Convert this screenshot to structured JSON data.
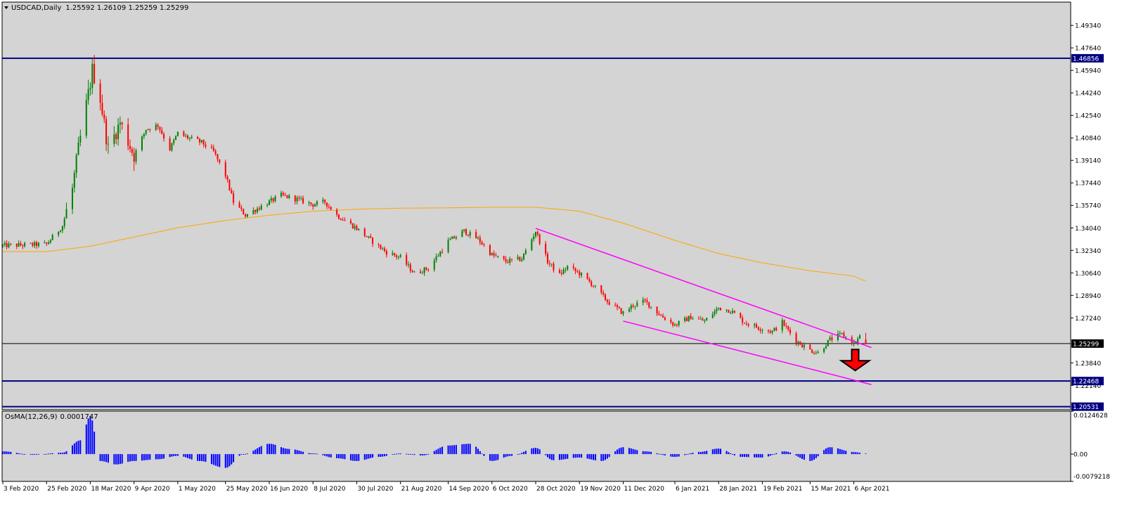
{
  "header": {
    "dropdown_icon": "triangle-down-icon",
    "title": "USDCAD,Daily",
    "ohlc": "1.25592 1.26109 1.25259 1.25299"
  },
  "colors": {
    "background": "#ffffff",
    "plot_background": "#d4d4d4",
    "bull": "#008000",
    "bear": "#ff0000",
    "ma_line": "#ffa500",
    "channel": "#ff00ff",
    "level_line": "#000080",
    "osma_bars": "#0000ff",
    "arrow": "#ff0000"
  },
  "chart_data": [
    {
      "type": "candlestick",
      "symbol": "USDCAD",
      "timeframe": "Daily",
      "ohlc_last": {
        "open": 1.25592,
        "high": 1.26109,
        "low": 1.25259,
        "close": 1.25299
      },
      "ylim": [
        1.203,
        1.511
      ],
      "y_ticks": [
        "1.49340",
        "1.47640",
        "1.45940",
        "1.44240",
        "1.42540",
        "1.40840",
        "1.39140",
        "1.37440",
        "1.35740",
        "1.34040",
        "1.32340",
        "1.30640",
        "1.28940",
        "1.27240",
        "1.23840",
        "1.22140"
      ],
      "x_ticks": [
        "3 Feb 2020",
        "25 Feb 2020",
        "18 Mar 2020",
        "9 Apr 2020",
        "1 May 2020",
        "25 May 2020",
        "16 Jun 2020",
        "8 Jul 2020",
        "30 Jul 2020",
        "21 Aug 2020",
        "14 Sep 2020",
        "6 Oct 2020",
        "28 Oct 2020",
        "19 Nov 2020",
        "11 Dec 2020",
        "6 Jan 2021",
        "28 Jan 2021",
        "19 Feb 2021",
        "15 Mar 2021",
        "6 Apr 2021"
      ],
      "price_levels": [
        {
          "label": "1.46856",
          "value": 1.46856
        },
        {
          "label": "1.25299",
          "value": 1.25299
        },
        {
          "label": "1.22468",
          "value": 1.22468
        },
        {
          "label": "1.20531",
          "value": 1.20531
        }
      ],
      "moving_average": {
        "x": [
          "3 Feb 2020",
          "25 Feb 2020",
          "18 Mar 2020",
          "9 Apr 2020",
          "1 May 2020",
          "25 May 2020",
          "16 Jun 2020",
          "8 Jul 2020",
          "30 Jul 2020",
          "21 Aug 2020",
          "14 Sep 2020",
          "6 Oct 2020",
          "28 Oct 2020",
          "19 Nov 2020",
          "11 Dec 2020",
          "6 Jan 2021",
          "28 Jan 2021",
          "19 Feb 2021",
          "15 Mar 2021",
          "6 Apr 2021",
          "12 Apr 2021"
        ],
        "y": [
          1.3225,
          1.3225,
          1.3265,
          1.3335,
          1.3405,
          1.346,
          1.35,
          1.353,
          1.3545,
          1.3553,
          1.3555,
          1.356,
          1.356,
          1.353,
          1.344,
          1.331,
          1.321,
          1.314,
          1.308,
          1.304,
          1.3
        ]
      },
      "channel": {
        "upper": [
          {
            "x": "28 Oct 2020",
            "y": 1.34
          },
          {
            "x": "12 Apr 2021",
            "y": 1.25
          }
        ],
        "lower": [
          {
            "x": "11 Dec 2020",
            "y": 1.27
          },
          {
            "x": "12 Apr 2021",
            "y": 1.222
          }
        ]
      },
      "annotation": {
        "type": "arrow-down",
        "x": "12 Apr 2021",
        "y": 1.24
      },
      "series": [
        {
          "x": "3 Feb 2020",
          "y": 1.327
        },
        {
          "x": "25 Feb 2020",
          "y": 1.328
        },
        {
          "x": "4 Mar 2020",
          "y": 1.342
        },
        {
          "x": "9 Mar 2020",
          "y": 1.37
        },
        {
          "x": "12 Mar 2020",
          "y": 1.4
        },
        {
          "x": "18 Mar 2020",
          "y": 1.45
        },
        {
          "x": "19 Mar 2020",
          "y": 1.46
        },
        {
          "x": "23 Mar 2020",
          "y": 1.438
        },
        {
          "x": "27 Mar 2020",
          "y": 1.4
        },
        {
          "x": "2 Apr 2020",
          "y": 1.42
        },
        {
          "x": "9 Apr 2020",
          "y": 1.395
        },
        {
          "x": "15 Apr 2020",
          "y": 1.415
        },
        {
          "x": "21 Apr 2020",
          "y": 1.418
        },
        {
          "x": "27 Apr 2020",
          "y": 1.4
        },
        {
          "x": "1 May 2020",
          "y": 1.412
        },
        {
          "x": "7 May 2020",
          "y": 1.408
        },
        {
          "x": "13 May 2020",
          "y": 1.405
        },
        {
          "x": "19 May 2020",
          "y": 1.398
        },
        {
          "x": "25 May 2020",
          "y": 1.38
        },
        {
          "x": "29 May 2020",
          "y": 1.36
        },
        {
          "x": "4 Jun 2020",
          "y": 1.35
        },
        {
          "x": "10 Jun 2020",
          "y": 1.355
        },
        {
          "x": "16 Jun 2020",
          "y": 1.36
        },
        {
          "x": "22 Jun 2020",
          "y": 1.365
        },
        {
          "x": "30 Jun 2020",
          "y": 1.362
        },
        {
          "x": "8 Jul 2020",
          "y": 1.358
        },
        {
          "x": "14 Jul 2020",
          "y": 1.36
        },
        {
          "x": "20 Jul 2020",
          "y": 1.35
        },
        {
          "x": "30 Jul 2020",
          "y": 1.34
        },
        {
          "x": "7 Aug 2020",
          "y": 1.33
        },
        {
          "x": "14 Aug 2020",
          "y": 1.322
        },
        {
          "x": "21 Aug 2020",
          "y": 1.318
        },
        {
          "x": "28 Aug 2020",
          "y": 1.306
        },
        {
          "x": "4 Sep 2020",
          "y": 1.31
        },
        {
          "x": "9 Sep 2020",
          "y": 1.32
        },
        {
          "x": "14 Sep 2020",
          "y": 1.33
        },
        {
          "x": "22 Sep 2020",
          "y": 1.338
        },
        {
          "x": "29 Sep 2020",
          "y": 1.332
        },
        {
          "x": "6 Oct 2020",
          "y": 1.32
        },
        {
          "x": "13 Oct 2020",
          "y": 1.315
        },
        {
          "x": "21 Oct 2020",
          "y": 1.317
        },
        {
          "x": "28 Oct 2020",
          "y": 1.338
        },
        {
          "x": "3 Nov 2020",
          "y": 1.315
        },
        {
          "x": "9 Nov 2020",
          "y": 1.305
        },
        {
          "x": "13 Nov 2020",
          "y": 1.311
        },
        {
          "x": "19 Nov 2020",
          "y": 1.306
        },
        {
          "x": "26 Nov 2020",
          "y": 1.297
        },
        {
          "x": "3 Dec 2020",
          "y": 1.285
        },
        {
          "x": "11 Dec 2020",
          "y": 1.276
        },
        {
          "x": "16 Dec 2020",
          "y": 1.282
        },
        {
          "x": "22 Dec 2020",
          "y": 1.285
        },
        {
          "x": "30 Dec 2020",
          "y": 1.274
        },
        {
          "x": "6 Jan 2021",
          "y": 1.267
        },
        {
          "x": "14 Jan 2021",
          "y": 1.273
        },
        {
          "x": "21 Jan 2021",
          "y": 1.27
        },
        {
          "x": "28 Jan 2021",
          "y": 1.28
        },
        {
          "x": "3 Feb 2021",
          "y": 1.278
        },
        {
          "x": "10 Feb 2021",
          "y": 1.269
        },
        {
          "x": "19 Feb 2021",
          "y": 1.264
        },
        {
          "x": "24 Feb 2021",
          "y": 1.262
        },
        {
          "x": "1 Mar 2021",
          "y": 1.269
        },
        {
          "x": "8 Mar 2021",
          "y": 1.255
        },
        {
          "x": "15 Mar 2021",
          "y": 1.248
        },
        {
          "x": "19 Mar 2021",
          "y": 1.246
        },
        {
          "x": "25 Mar 2021",
          "y": 1.256
        },
        {
          "x": "31 Mar 2021",
          "y": 1.26
        },
        {
          "x": "6 Apr 2021",
          "y": 1.253
        },
        {
          "x": "9 Apr 2021",
          "y": 1.258
        },
        {
          "x": "12 Apr 2021",
          "y": 1.253
        }
      ]
    },
    {
      "type": "bar",
      "name": "OsMA(12,26,9) 0.0001747",
      "label": "OsMA(12,26,9)",
      "value_label": "0.0001747",
      "ylim": [
        -0.0079218,
        0.0124628
      ],
      "y_ticks": [
        "0.0124628",
        "0.00",
        "-0.0079218"
      ],
      "x": [
        "3 Feb 2020",
        "18 Feb 2020",
        "4 Mar 2020",
        "13 Mar 2020",
        "18 Mar 2020",
        "23 Mar 2020",
        "31 Mar 2020",
        "9 Apr 2020",
        "21 Apr 2020",
        "1 May 2020",
        "12 May 2020",
        "25 May 2020",
        "3 Jun 2020",
        "16 Jun 2020",
        "26 Jun 2020",
        "8 Jul 2020",
        "20 Jul 2020",
        "30 Jul 2020",
        "10 Aug 2020",
        "21 Aug 2020",
        "1 Sep 2020",
        "14 Sep 2020",
        "25 Sep 2020",
        "6 Oct 2020",
        "16 Oct 2020",
        "28 Oct 2020",
        "6 Nov 2020",
        "19 Nov 2020",
        "30 Nov 2020",
        "11 Dec 2020",
        "22 Dec 2020",
        "6 Jan 2021",
        "18 Jan 2021",
        "28 Jan 2021",
        "8 Feb 2021",
        "19 Feb 2021",
        "2 Mar 2021",
        "15 Mar 2021",
        "25 Mar 2021",
        "6 Apr 2021",
        "12 Apr 2021"
      ],
      "values": [
        0.0008,
        -0.0002,
        0.0004,
        0.004,
        0.011,
        -0.002,
        -0.003,
        -0.002,
        -0.0015,
        -0.0005,
        -0.002,
        -0.004,
        0.0,
        0.003,
        0.0015,
        0.0002,
        -0.0012,
        -0.002,
        -0.0008,
        0.0002,
        -0.0004,
        0.0025,
        0.003,
        -0.002,
        -0.0005,
        0.0018,
        -0.0018,
        -0.001,
        -0.002,
        0.002,
        0.0008,
        -0.0008,
        0.0006,
        0.0016,
        -0.0008,
        -0.001,
        0.0008,
        -0.002,
        0.002,
        0.0006,
        0.0001747
      ]
    }
  ]
}
